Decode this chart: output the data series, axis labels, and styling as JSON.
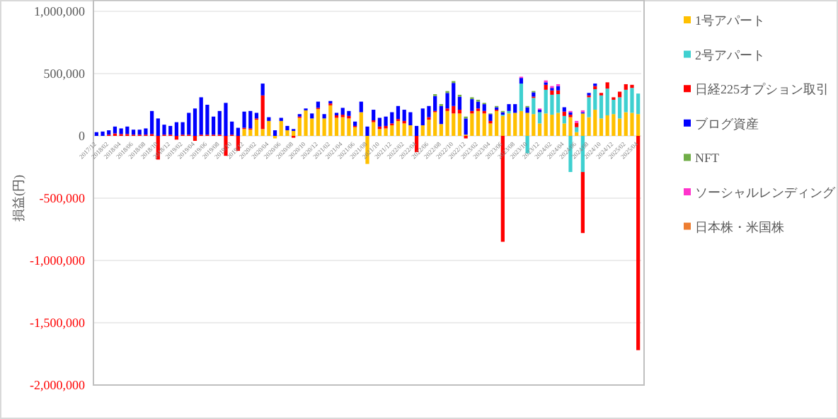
{
  "chart_data": {
    "type": "bar",
    "stacked": true,
    "ylabel": "損益(円)",
    "legend": "right",
    "grid": "y",
    "ylim": [
      -2000000,
      1000000
    ],
    "yticks": [
      {
        "value": -2000000,
        "label": "-2,000,000"
      },
      {
        "value": -1500000,
        "label": "-1,500,000"
      },
      {
        "value": -1000000,
        "label": "-1,000,000"
      },
      {
        "value": -500000,
        "label": "-500,000"
      },
      0,
      {
        "value": 500000,
        "label": "500,000"
      },
      {
        "value": 1000000,
        "label": "1,000,000"
      }
    ],
    "categories": [
      "2017/12",
      null,
      "2018/02",
      null,
      "2018/04",
      null,
      "2018/06",
      null,
      "2018/08",
      null,
      "2018/10",
      null,
      "2018/12",
      null,
      "2019/02",
      null,
      "2019/04",
      null,
      "2019/06",
      null,
      "2019/08",
      null,
      "2019/10",
      null,
      "2019/12",
      null,
      "2020/02",
      null,
      "2020/04",
      null,
      "2020/06",
      null,
      "2020/08",
      null,
      "2020/10",
      null,
      "2020/12",
      null,
      "2021/02",
      null,
      "2021/04",
      null,
      "2021/06",
      null,
      "2021/08",
      null,
      "2021/10",
      null,
      "2021/12",
      null,
      "2022/02",
      null,
      "2022/04",
      null,
      "2022/06",
      null,
      "2022/08",
      null,
      "2022/10",
      null,
      "2022/12",
      null,
      "2023/02",
      null,
      "2023/04",
      null,
      "2023/06",
      null,
      "2023/08",
      null,
      "2023/10",
      null,
      "2023/12",
      null,
      "2024/02",
      null,
      "2024/04",
      null,
      "2024/06",
      null,
      "2024/08",
      null,
      "2024/10",
      null,
      "2024/12",
      null,
      "2025/02",
      null,
      "2025/04"
    ],
    "series": [
      {
        "name": "1号アパート",
        "color": "#ffc000",
        "values": [
          null,
          null,
          null,
          null,
          null,
          null,
          null,
          null,
          null,
          null,
          null,
          null,
          null,
          null,
          null,
          null,
          null,
          null,
          null,
          null,
          null,
          null,
          null,
          null,
          55000,
          50000,
          130000,
          55000,
          120000,
          -20000,
          120000,
          45000,
          40000,
          145000,
          205000,
          140000,
          215000,
          140000,
          245000,
          145000,
          150000,
          140000,
          70000,
          190000,
          -225000,
          110000,
          55000,
          60000,
          85000,
          120000,
          100000,
          85000,
          null,
          85000,
          130000,
          190000,
          95000,
          200000,
          180000,
          180000,
          10000,
          180000,
          200000,
          180000,
          100000,
          200000,
          160000,
          180000,
          185000,
          200000,
          185000,
          175000,
          100000,
          180000,
          170000,
          185000,
          100000,
          150000,
          30000,
          180000,
          150000,
          210000,
          140000,
          165000,
          175000,
          140000,
          190000,
          185000,
          175000
        ]
      },
      {
        "name": "2号アパート",
        "color": "#3fd0d0",
        "values": [
          null,
          null,
          null,
          null,
          null,
          null,
          null,
          null,
          null,
          null,
          null,
          null,
          null,
          null,
          null,
          null,
          null,
          null,
          null,
          null,
          null,
          null,
          null,
          null,
          null,
          null,
          null,
          null,
          null,
          null,
          null,
          null,
          null,
          null,
          null,
          null,
          null,
          null,
          null,
          null,
          null,
          null,
          null,
          null,
          null,
          null,
          null,
          null,
          null,
          null,
          null,
          null,
          null,
          null,
          null,
          null,
          null,
          null,
          null,
          null,
          null,
          null,
          null,
          null,
          null,
          null,
          10000,
          20000,
          null,
          220000,
          -140000,
          130000,
          90000,
          190000,
          160000,
          150000,
          60000,
          -290000,
          40000,
          -290000,
          160000,
          165000,
          185000,
          215000,
          115000,
          170000,
          180000,
          200000,
          165000
        ]
      },
      {
        "name": "日経225オプション取引",
        "color": "#ff0000",
        "values": [
          null,
          null,
          10000,
          20000,
          15000,
          15000,
          10000,
          10000,
          10000,
          15000,
          -190000,
          10000,
          10000,
          -30000,
          10000,
          10000,
          -40000,
          10000,
          10000,
          10000,
          10000,
          -160000,
          10000,
          -120000,
          10000,
          10000,
          10000,
          270000,
          null,
          null,
          null,
          null,
          -15000,
          10000,
          null,
          null,
          10000,
          null,
          15000,
          20000,
          20000,
          20000,
          10000,
          null,
          null,
          15000,
          20000,
          20000,
          15000,
          15000,
          20000,
          null,
          -130000,
          null,
          20000,
          10000,
          null,
          20000,
          60000,
          30000,
          -20000,
          20000,
          20000,
          20000,
          20000,
          10000,
          -850000,
          null,
          null,
          null,
          null,
          10000,
          null,
          40000,
          35000,
          30000,
          35000,
          20000,
          35000,
          -490000,
          15000,
          25000,
          20000,
          50000,
          20000,
          45000,
          45000,
          25000,
          -1720000
        ]
      },
      {
        "name": "ブログ資産",
        "color": "#0000ff",
        "values": [
          30000,
          35000,
          35000,
          55000,
          45000,
          60000,
          40000,
          40000,
          50000,
          185000,
          140000,
          80000,
          70000,
          110000,
          100000,
          175000,
          220000,
          300000,
          240000,
          145000,
          190000,
          265000,
          105000,
          65000,
          130000,
          140000,
          45000,
          95000,
          30000,
          45000,
          25000,
          35000,
          15000,
          20000,
          15000,
          40000,
          50000,
          35000,
          20000,
          20000,
          55000,
          40000,
          35000,
          85000,
          75000,
          85000,
          70000,
          75000,
          90000,
          105000,
          90000,
          105000,
          80000,
          135000,
          90000,
          120000,
          145000,
          125000,
          185000,
          105000,
          130000,
          95000,
          55000,
          55000,
          55000,
          20000,
          20000,
          55000,
          70000,
          45000,
          45000,
          35000,
          20000,
          20000,
          20000,
          35000,
          35000,
          20000,
          null,
          10000,
          20000,
          20000,
          null,
          null,
          null,
          null,
          null,
          null,
          null
        ]
      },
      {
        "name": "NFT",
        "color": "#70ad47",
        "values": [
          null,
          null,
          null,
          null,
          null,
          null,
          null,
          null,
          null,
          null,
          null,
          null,
          null,
          null,
          null,
          null,
          null,
          null,
          null,
          null,
          null,
          null,
          null,
          null,
          null,
          null,
          null,
          null,
          null,
          null,
          null,
          null,
          null,
          null,
          null,
          null,
          null,
          null,
          null,
          null,
          null,
          null,
          null,
          null,
          null,
          null,
          null,
          null,
          null,
          null,
          null,
          null,
          null,
          null,
          null,
          15000,
          15000,
          15000,
          15000,
          15000,
          15000,
          15000,
          15000,
          10000,
          5000,
          10000,
          10000,
          null,
          null,
          null,
          10000,
          10000,
          null,
          null,
          null,
          null,
          null,
          null,
          null,
          null,
          null,
          null,
          null,
          null,
          null,
          null,
          null,
          null,
          null
        ]
      },
      {
        "name": "ソーシャルレンディング",
        "color": "#ff33cc",
        "values": [
          null,
          null,
          null,
          null,
          null,
          null,
          null,
          null,
          null,
          null,
          null,
          null,
          null,
          null,
          null,
          null,
          null,
          null,
          null,
          null,
          null,
          null,
          null,
          null,
          null,
          null,
          null,
          null,
          null,
          null,
          null,
          null,
          null,
          null,
          null,
          null,
          null,
          null,
          null,
          null,
          null,
          null,
          null,
          null,
          null,
          null,
          null,
          null,
          null,
          null,
          null,
          null,
          null,
          null,
          null,
          null,
          null,
          null,
          null,
          null,
          null,
          null,
          null,
          null,
          null,
          null,
          null,
          null,
          null,
          10000,
          null,
          null,
          10000,
          15000,
          15000,
          15000,
          null,
          10000,
          15000,
          15000,
          null,
          null,
          null,
          null,
          null,
          null,
          null,
          null,
          null
        ]
      },
      {
        "name": "日本株・米国株",
        "color": "#ed7d31",
        "values": [
          null,
          null,
          null,
          null,
          null,
          null,
          null,
          null,
          null,
          null,
          null,
          null,
          null,
          null,
          null,
          null,
          null,
          null,
          null,
          null,
          null,
          null,
          null,
          null,
          null,
          null,
          null,
          null,
          null,
          null,
          null,
          null,
          null,
          null,
          null,
          null,
          null,
          null,
          null,
          null,
          null,
          null,
          null,
          null,
          null,
          null,
          null,
          null,
          null,
          null,
          null,
          null,
          null,
          null,
          null,
          null,
          null,
          null,
          null,
          null,
          null,
          null,
          null,
          null,
          null,
          null,
          null,
          null,
          null,
          null,
          null,
          null,
          null,
          null,
          null,
          null,
          null,
          null,
          null,
          null,
          null,
          null,
          null,
          null,
          null,
          null,
          null,
          null,
          null
        ]
      }
    ]
  }
}
